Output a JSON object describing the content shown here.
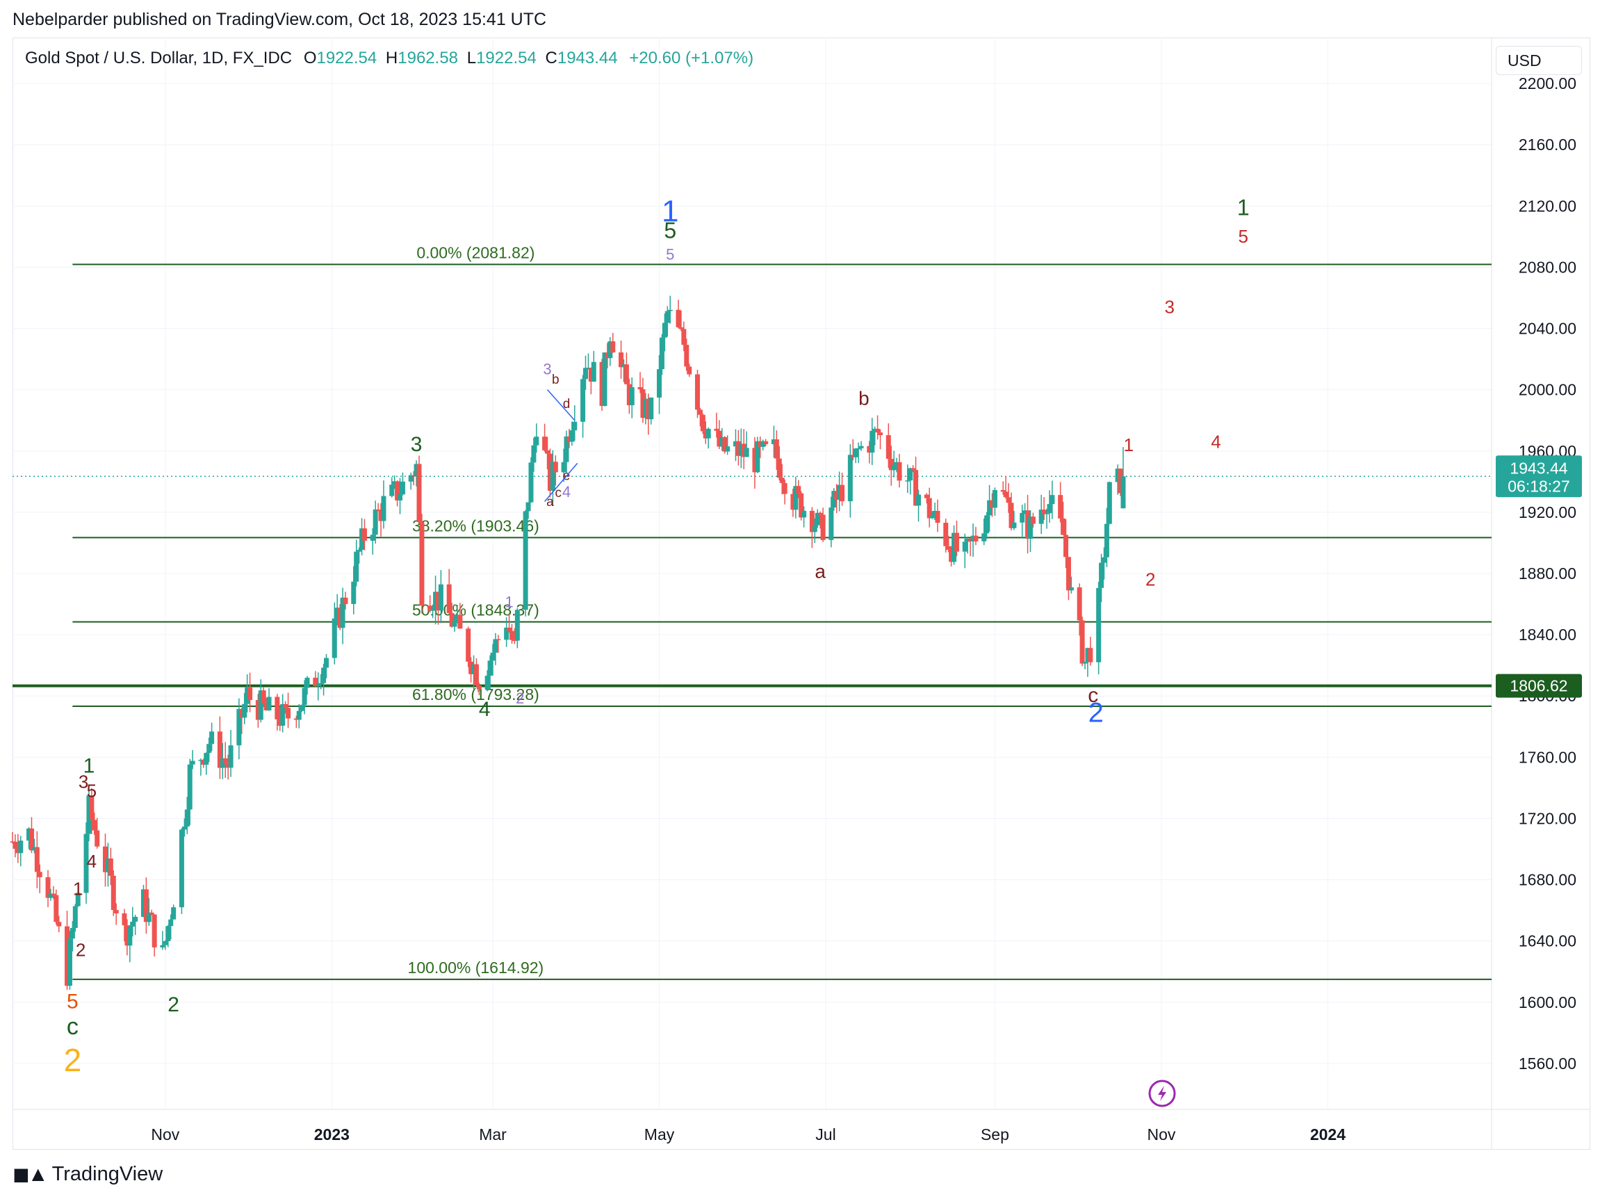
{
  "header": {
    "published": "Nebelparder published on TradingView.com, Oct 18, 2023 15:41 UTC"
  },
  "legend": {
    "symbol": "Gold Spot / U.S. Dollar, 1D, FX_IDC",
    "open_label": "O",
    "open": "1922.54",
    "high_label": "H",
    "high": "1962.58",
    "low_label": "L",
    "low": "1922.54",
    "close_label": "C",
    "close": "1943.44",
    "change": "+20.60 (+1.07%)"
  },
  "currency": "USD",
  "footer": {
    "brand": "TradingView",
    "logo": "tradingview-logo-icon"
  },
  "colors": {
    "up": "#26a69a",
    "down": "#ef5350",
    "fib": "#1b5e20",
    "grid": "#f0f3fa"
  },
  "chart_data": {
    "type": "candlestick",
    "title": "Gold Spot / U.S. Dollar, 1D, FX_IDC",
    "ylim": [
      1530,
      2230
    ],
    "x_range": [
      "2022-09-06",
      "2024-03-01"
    ],
    "grid": true,
    "y_ticks": [
      "1560.00",
      "1600.00",
      "1640.00",
      "1680.00",
      "1720.00",
      "1760.00",
      "1800.00",
      "1840.00",
      "1880.00",
      "1920.00",
      "1960.00",
      "2000.00",
      "2040.00",
      "2080.00",
      "2120.00",
      "2160.00",
      "2200.00"
    ],
    "x_ticks": [
      {
        "label": "Nov",
        "date": "2022-11-01",
        "bold": false
      },
      {
        "label": "2023",
        "date": "2023-01-01",
        "bold": true
      },
      {
        "label": "Mar",
        "date": "2023-03-01",
        "bold": false
      },
      {
        "label": "May",
        "date": "2023-05-01",
        "bold": false
      },
      {
        "label": "Jul",
        "date": "2023-07-01",
        "bold": false
      },
      {
        "label": "Sep",
        "date": "2023-09-01",
        "bold": false
      },
      {
        "label": "Nov",
        "date": "2023-11-01",
        "bold": false
      },
      {
        "label": "2024",
        "date": "2024-01-01",
        "bold": true
      }
    ],
    "price_path": [
      [
        "2022-09-06",
        1705
      ],
      [
        "2022-09-12",
        1710
      ],
      [
        "2022-09-19",
        1675
      ],
      [
        "2022-09-26",
        1620
      ],
      [
        "2022-10-04",
        1725
      ],
      [
        "2022-10-10",
        1690
      ],
      [
        "2022-10-17",
        1645
      ],
      [
        "2022-10-24",
        1665
      ],
      [
        "2022-10-31",
        1630
      ],
      [
        "2022-11-04",
        1670
      ],
      [
        "2022-11-10",
        1750
      ],
      [
        "2022-11-17",
        1770
      ],
      [
        "2022-11-24",
        1755
      ],
      [
        "2022-12-01",
        1800
      ],
      [
        "2022-12-08",
        1790
      ],
      [
        "2022-12-15",
        1785
      ],
      [
        "2022-12-22",
        1800
      ],
      [
        "2022-12-30",
        1825
      ],
      [
        "2023-01-06",
        1865
      ],
      [
        "2023-01-13",
        1905
      ],
      [
        "2023-01-20",
        1925
      ],
      [
        "2023-01-26",
        1935
      ],
      [
        "2023-02-01",
        1950
      ],
      [
        "2023-02-03",
        1870
      ],
      [
        "2023-02-10",
        1862
      ],
      [
        "2023-02-17",
        1840
      ],
      [
        "2023-02-24",
        1812
      ],
      [
        "2023-02-28",
        1825
      ],
      [
        "2023-03-06",
        1850
      ],
      [
        "2023-03-09",
        1830
      ],
      [
        "2023-03-13",
        1915
      ],
      [
        "2023-03-17",
        1980
      ],
      [
        "2023-03-22",
        1940
      ],
      [
        "2023-03-27",
        1960
      ],
      [
        "2023-04-04",
        2020
      ],
      [
        "2023-04-10",
        2000
      ],
      [
        "2023-04-13",
        2040
      ],
      [
        "2023-04-19",
        2000
      ],
      [
        "2023-04-24",
        1990
      ],
      [
        "2023-04-28",
        1985
      ],
      [
        "2023-05-04",
        2050
      ],
      [
        "2023-05-10",
        2030
      ],
      [
        "2023-05-17",
        1980
      ],
      [
        "2023-05-24",
        1960
      ],
      [
        "2023-05-30",
        1960
      ],
      [
        "2023-06-05",
        1955
      ],
      [
        "2023-06-12",
        1960
      ],
      [
        "2023-06-19",
        1930
      ],
      [
        "2023-06-26",
        1918
      ],
      [
        "2023-06-29",
        1908
      ],
      [
        "2023-07-05",
        1928
      ],
      [
        "2023-07-13",
        1960
      ],
      [
        "2023-07-20",
        1972
      ],
      [
        "2023-07-27",
        1950
      ],
      [
        "2023-08-03",
        1935
      ],
      [
        "2023-08-10",
        1915
      ],
      [
        "2023-08-16",
        1898
      ],
      [
        "2023-08-21",
        1890
      ],
      [
        "2023-08-28",
        1915
      ],
      [
        "2023-09-01",
        1940
      ],
      [
        "2023-09-07",
        1920
      ],
      [
        "2023-09-14",
        1910
      ],
      [
        "2023-09-20",
        1930
      ],
      [
        "2023-09-26",
        1905
      ],
      [
        "2023-09-29",
        1865
      ],
      [
        "2023-10-04",
        1822
      ],
      [
        "2023-10-06",
        1832
      ],
      [
        "2023-10-09",
        1860
      ],
      [
        "2023-10-13",
        1932
      ],
      [
        "2023-10-18",
        1943.44
      ]
    ],
    "ohlc_last": {
      "open": 1922.54,
      "high": 1962.58,
      "low": 1922.54,
      "close": 1943.44
    },
    "fib_levels": [
      {
        "label": "0.00% (2081.82)",
        "price": 2081.82
      },
      {
        "label": "38.20% (1903.46)",
        "price": 1903.46
      },
      {
        "label": "50.00% (1848.37)",
        "price": 1848.37
      },
      {
        "label": "61.80% (1793.28)",
        "price": 1793.28
      },
      {
        "label": "100.00% (1614.92)",
        "price": 1614.92
      }
    ],
    "fib_start_date": "2022-09-28",
    "horizontal_line": {
      "price": 1806.62,
      "label": "1806.62"
    },
    "last_price": {
      "price": 1943.44,
      "label": "1943.44",
      "countdown": "06:18:27"
    },
    "wave_labels": [
      {
        "text": "1",
        "date": "2022-10-04",
        "price": 1750,
        "color": "#1b5e20",
        "size": 30
      },
      {
        "text": "3",
        "date": "2022-10-02",
        "price": 1740,
        "color": "#7b1c1c",
        "size": 26
      },
      {
        "text": "5",
        "date": "2022-10-05",
        "price": 1734,
        "color": "#7b1c1c",
        "size": 26
      },
      {
        "text": "4",
        "date": "2022-10-05",
        "price": 1688,
        "color": "#7b1c1c",
        "size": 26
      },
      {
        "text": "1",
        "date": "2022-09-30",
        "price": 1670,
        "color": "#7b1c1c",
        "size": 26
      },
      {
        "text": "2",
        "date": "2022-10-01",
        "price": 1630,
        "color": "#7b1c1c",
        "size": 26
      },
      {
        "text": "5",
        "date": "2022-09-28",
        "price": 1596,
        "color": "#e65100",
        "size": 30
      },
      {
        "text": "c",
        "date": "2022-09-28",
        "price": 1579,
        "color": "#1b5e20",
        "size": 34
      },
      {
        "text": "2",
        "date": "2022-09-28",
        "price": 1555,
        "color": "#f9b21a",
        "size": 46
      },
      {
        "text": "2",
        "date": "2022-11-04",
        "price": 1594,
        "color": "#1b5e20",
        "size": 30
      },
      {
        "text": "3",
        "date": "2023-02-01",
        "price": 1960,
        "color": "#1b5e20",
        "size": 30
      },
      {
        "text": "4",
        "date": "2023-02-26",
        "price": 1787,
        "color": "#1b5e20",
        "size": 30
      },
      {
        "text": "1",
        "date": "2023-03-07",
        "price": 1858,
        "color": "#9575cd",
        "size": 22
      },
      {
        "text": "2",
        "date": "2023-03-11",
        "price": 1795,
        "color": "#9575cd",
        "size": 22
      },
      {
        "text": "3",
        "date": "2023-03-21",
        "price": 2010,
        "color": "#9575cd",
        "size": 22
      },
      {
        "text": "b",
        "date": "2023-03-24",
        "price": 2004,
        "color": "#7b1c1c",
        "size": 19
      },
      {
        "text": "d",
        "date": "2023-03-28",
        "price": 1988,
        "color": "#7b1c1c",
        "size": 19
      },
      {
        "text": "a",
        "date": "2023-03-22",
        "price": 1924,
        "color": "#7b1c1c",
        "size": 19
      },
      {
        "text": "c",
        "date": "2023-03-25",
        "price": 1930,
        "color": "#7b1c1c",
        "size": 19
      },
      {
        "text": "e",
        "date": "2023-03-28",
        "price": 1941,
        "color": "#7b1c1c",
        "size": 19
      },
      {
        "text": "4",
        "date": "2023-03-28",
        "price": 1930,
        "color": "#9575cd",
        "size": 22
      },
      {
        "text": "1",
        "date": "2023-05-05",
        "price": 2110,
        "color": "#2962ff",
        "size": 44
      },
      {
        "text": "5",
        "date": "2023-05-05",
        "price": 2099,
        "color": "#1b5e20",
        "size": 32
      },
      {
        "text": "5",
        "date": "2023-05-05",
        "price": 2085,
        "color": "#9575cd",
        "size": 22
      },
      {
        "text": "a",
        "date": "2023-06-29",
        "price": 1877,
        "color": "#7b1c1c",
        "size": 28
      },
      {
        "text": "b",
        "date": "2023-07-15",
        "price": 1990,
        "color": "#7b1c1c",
        "size": 28
      },
      {
        "text": "c",
        "date": "2023-10-07",
        "price": 1796,
        "color": "#7b1c1c",
        "size": 30
      },
      {
        "text": "2",
        "date": "2023-10-08",
        "price": 1783,
        "color": "#2962ff",
        "size": 40
      },
      {
        "text": "1",
        "date": "2023-10-20",
        "price": 1960,
        "color": "#c62828",
        "size": 26
      },
      {
        "text": "2",
        "date": "2023-10-28",
        "price": 1872,
        "color": "#c62828",
        "size": 26
      },
      {
        "text": "3",
        "date": "2023-11-04",
        "price": 2050,
        "color": "#c62828",
        "size": 26
      },
      {
        "text": "4",
        "date": "2023-11-21",
        "price": 1962,
        "color": "#c62828",
        "size": 26
      },
      {
        "text": "1",
        "date": "2023-12-01",
        "price": 2114,
        "color": "#1b5e20",
        "size": 32
      },
      {
        "text": "5",
        "date": "2023-12-01",
        "price": 2096,
        "color": "#c62828",
        "size": 26
      }
    ]
  }
}
